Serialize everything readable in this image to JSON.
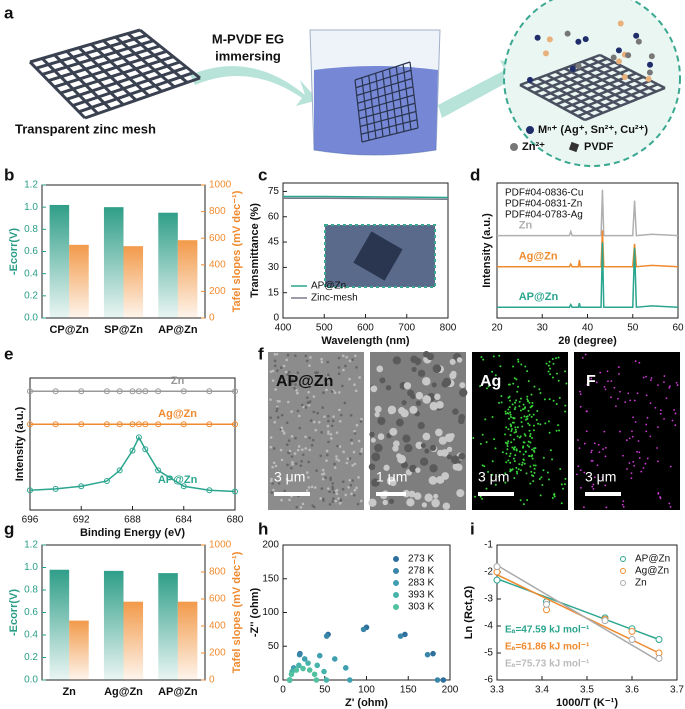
{
  "figure": {
    "panel_labels": [
      "a",
      "b",
      "c",
      "d",
      "e",
      "f",
      "g",
      "h",
      "i"
    ],
    "panel_a": {
      "caption": "Transparent zinc mesh",
      "step": [
        "M-PVDF EG",
        "immersing"
      ],
      "legend": [
        "Mⁿ⁺ (Ag⁺, Sn²⁺, Cu²⁺)",
        "Zn²⁺",
        "PVDF"
      ]
    },
    "panel_f": {
      "labels": [
        "AP@Zn",
        "Ag",
        "F"
      ],
      "scale_bars": [
        "3 μm",
        "1 μm",
        "3 μm",
        "3 μm"
      ]
    }
  },
  "chart_data": [
    {
      "type": "bar",
      "categories": [
        "CP@Zn",
        "SP@Zn",
        "AP@Zn"
      ],
      "series": [
        {
          "color": "#2f9e88",
          "values": [
            1.02,
            1.0,
            0.95
          ]
        },
        {
          "color": "#f29a4a",
          "axis": "y2",
          "values": [
            550,
            540,
            585
          ]
        }
      ],
      "ylim": [
        0,
        1.2
      ],
      "yticks": [
        {
          "value": 0,
          "label": "0.0"
        },
        0.2,
        0.4,
        0.6,
        0.8,
        {
          "value": 1,
          "label": "1.0"
        },
        1.2
      ],
      "y2lim": [
        0,
        1000
      ],
      "y2ticks": [
        0,
        200,
        400,
        600,
        800,
        1000
      ],
      "ylabel": "-Ecorr(V)",
      "y2label": "Tafel slopes (mV dec⁻¹)",
      "ycolor": "#2a9d86",
      "y2color": "#f08a2e"
    },
    {
      "type": "line",
      "x": [
        400,
        500,
        600,
        700,
        800
      ],
      "series": [
        {
          "name": "AP@Zn",
          "color": "#2aa58e",
          "values": [
            72,
            72,
            71.8,
            71.6,
            71.4
          ]
        },
        {
          "name": "Zinc-mesh",
          "color": "#7a7a8a",
          "values": [
            71,
            71,
            70.8,
            70.6,
            70.4
          ]
        }
      ],
      "xlim": [
        400,
        800
      ],
      "xticks": [
        400,
        500,
        600,
        700,
        800
      ],
      "ylim": [
        0,
        80
      ],
      "yticks": [
        0,
        15,
        30,
        45,
        60,
        75
      ],
      "xlabel": "Wavelength (nm)",
      "ylabel": "Transmittance (%)",
      "legend": "lower left"
    },
    {
      "type": "line",
      "x": [
        20,
        36,
        36.3,
        36.6,
        38,
        38.2,
        38.4,
        43,
        43.3,
        43.6,
        50,
        50.4,
        50.8,
        54.2,
        60
      ],
      "series": [
        {
          "name": "Zn",
          "color": "#b0b0b0",
          "values": [
            6.1,
            6.1,
            6.4,
            6.1,
            6.1,
            6.1,
            6.1,
            6.1,
            9.5,
            6.1,
            6.1,
            8.7,
            6.1,
            6.2,
            6.1
          ]
        },
        {
          "name": "Ag@Zn",
          "color": "#f08a2e",
          "values": [
            3.8,
            3.8,
            4.0,
            3.8,
            3.8,
            4.3,
            3.8,
            3.8,
            6.5,
            3.8,
            3.8,
            5.5,
            3.8,
            3.9,
            3.8
          ]
        },
        {
          "name": "AP@Zn",
          "color": "#2aa58e",
          "values": [
            0.8,
            0.8,
            1.0,
            0.8,
            0.8,
            1.1,
            0.8,
            0.8,
            5.6,
            0.8,
            0.8,
            5.2,
            0.8,
            0.9,
            0.8
          ]
        }
      ],
      "xlim": [
        20,
        60
      ],
      "xticks": [
        20,
        30,
        40,
        50,
        60
      ],
      "ylim": [
        0,
        10
      ],
      "xlabel": "2θ (degree)",
      "ylabel": "Intensity (a.u.)",
      "annotations": [
        "PDF#04-0836-Cu",
        "PDF#04-0831-Zn",
        "PDF#04-0783-Ag"
      ],
      "annotation_corner": "upper left"
    },
    {
      "type": "line",
      "markers": true,
      "x": [
        696,
        694,
        692,
        690,
        689,
        688,
        687.5,
        687,
        686,
        684,
        682,
        680
      ],
      "series": [
        {
          "name": "Zn",
          "color": "#999999",
          "values": [
            9,
            9,
            9,
            9,
            9,
            9,
            9,
            9,
            9,
            9,
            9,
            9
          ]
        },
        {
          "name": "Ag@Zn",
          "color": "#f08a2e",
          "values": [
            6.5,
            6.5,
            6.5,
            6.5,
            6.5,
            6.5,
            6.5,
            6.5,
            6.5,
            6.5,
            6.5,
            6.5
          ]
        },
        {
          "name": "AP@Zn",
          "color": "#2aa58e",
          "values": [
            1.5,
            1.6,
            1.8,
            2.2,
            3.0,
            4.5,
            5.5,
            4.6,
            3.0,
            1.8,
            1.5,
            1.4
          ]
        }
      ],
      "xlim": [
        696,
        680
      ],
      "xticks": [
        696,
        692,
        688,
        684,
        680
      ],
      "ylim": [
        0,
        10
      ],
      "xlabel": "Binding Energy (eV)",
      "ylabel": "Intensity (a.u.)"
    },
    {
      "type": "bar",
      "categories": [
        "Zn",
        "Ag@Zn",
        "AP@Zn"
      ],
      "series": [
        {
          "color": "#2f9e88",
          "values": [
            0.98,
            0.97,
            0.95
          ]
        },
        {
          "color": "#f29a4a",
          "axis": "y2",
          "values": [
            440,
            580,
            580
          ]
        }
      ],
      "ylim": [
        0,
        1.2
      ],
      "yticks": [
        {
          "value": 0,
          "label": "0.0"
        },
        0.2,
        0.4,
        0.6,
        0.8,
        {
          "value": 1,
          "label": "1.0"
        },
        1.2
      ],
      "y2lim": [
        0,
        1000
      ],
      "y2ticks": [
        0,
        200,
        400,
        600,
        800,
        1000
      ],
      "ylabel": "-Ecorr(V)",
      "y2label": "Tafel slopes (mV dec⁻¹)",
      "ycolor": "#2a9d86",
      "y2color": "#f08a2e"
    },
    {
      "type": "scatter",
      "series": [
        {
          "name": "273 K",
          "color": "#2e6f9e",
          "x": [
            192,
            179.7,
            146,
            100,
            54,
            20.3,
            8
          ],
          "values": [
            0,
            39,
            67.5,
            78,
            67.5,
            39,
            0
          ]
        },
        {
          "name": "278 K",
          "color": "#3a86a8",
          "x": [
            185,
            173.1,
            140.8,
            96.5,
            52.3,
            19.9,
            8
          ],
          "values": [
            0,
            37.5,
            65,
            75,
            65,
            37.5,
            0
          ]
        },
        {
          "name": "283 K",
          "color": "#3f9fb0",
          "x": [
            80,
            75.2,
            62,
            44,
            26,
            12.8,
            8
          ],
          "values": [
            0,
            18,
            31.2,
            36,
            31.2,
            18,
            0
          ]
        },
        {
          "name": "393 K",
          "color": "#47b3aa",
          "x": [
            52,
            49.1,
            41,
            30,
            19,
            10.9,
            8
          ],
          "values": [
            0,
            12.5,
            21.7,
            25,
            21.7,
            12.5,
            0
          ]
        },
        {
          "name": "303 K",
          "color": "#52c1a0",
          "x": [
            40,
            37.9,
            32,
            24,
            16,
            10.1,
            8
          ],
          "values": [
            0,
            8.5,
            14.7,
            17,
            14.7,
            8.5,
            0
          ]
        }
      ],
      "xlim": [
        0,
        200
      ],
      "xticks": [
        0,
        50,
        100,
        150,
        200
      ],
      "ylim": [
        0,
        200
      ],
      "yticks": [
        0,
        50,
        100,
        150,
        200
      ],
      "xlabel": "Z' (ohm)",
      "ylabel": "-Z'' (ohm)",
      "legend": "upper right"
    },
    {
      "type": "scatter",
      "open_markers": true,
      "series": [
        {
          "name": "AP@Zn",
          "color": "#2aa58e",
          "x": [
            3.3,
            3.41,
            3.54,
            3.6,
            3.66
          ],
          "values": [
            -2.3,
            -3.1,
            -3.7,
            -4.1,
            -4.5
          ],
          "fit": {
            "x": [
              3.3,
              3.66
            ],
            "values": [
              -2.25,
              -4.5
            ]
          }
        },
        {
          "name": "Ag@Zn",
          "color": "#f08a2e",
          "x": [
            3.3,
            3.41,
            3.54,
            3.6,
            3.66
          ],
          "values": [
            -2.0,
            -3.4,
            -3.75,
            -4.2,
            -5.0
          ],
          "fit": {
            "x": [
              3.3,
              3.66
            ],
            "values": [
              -2.1,
              -5.0
            ]
          }
        },
        {
          "name": "Zn",
          "color": "#aaaaaa",
          "x": [
            3.3,
            3.41,
            3.54,
            3.6,
            3.66
          ],
          "values": [
            -1.8,
            -3.2,
            -3.8,
            -4.5,
            -5.2
          ],
          "fit": {
            "x": [
              3.3,
              3.66
            ],
            "values": [
              -1.75,
              -5.3
            ]
          }
        }
      ],
      "xlim": [
        3.3,
        3.7
      ],
      "xticks": [
        3.3,
        3.4,
        3.5,
        3.6,
        3.7
      ],
      "ylim": [
        -6,
        -1
      ],
      "yticks": [
        -6,
        -5,
        -4,
        -3,
        -2,
        -1
      ],
      "xlabel": "1000/T (K⁻¹)",
      "ylabel": "Ln (Rct,Ω)",
      "legend": "upper right",
      "annotations": [
        {
          "text": "Eₐ=47.59 kJ mol⁻¹",
          "color": "#2aa58e"
        },
        {
          "text": "Eₐ=61.86 kJ mol⁻¹",
          "color": "#f08a2e"
        },
        {
          "text": "Eₐ=75.73 kJ mol⁻¹",
          "color": "#bbbbbb"
        }
      ],
      "annotation_corner": "lower left"
    }
  ]
}
